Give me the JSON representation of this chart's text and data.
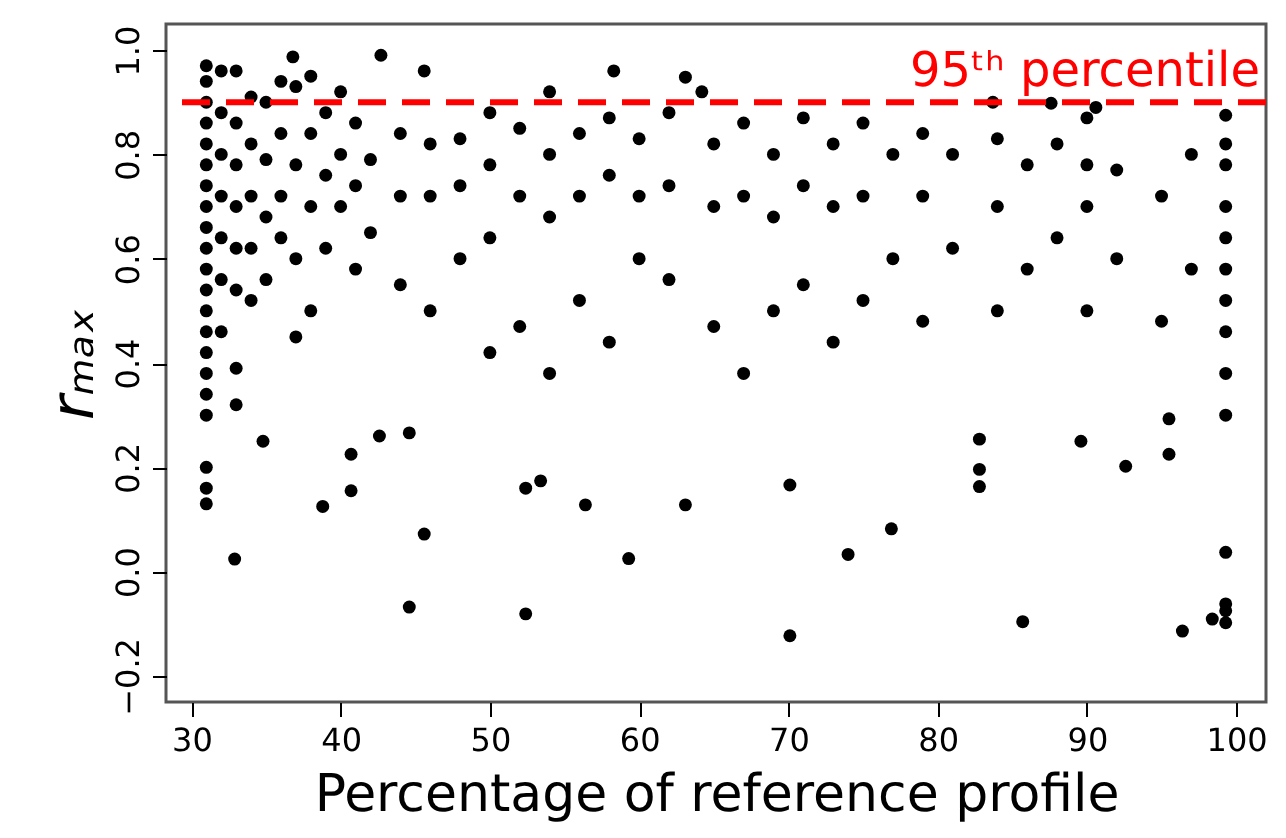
{
  "chart_data": {
    "type": "scatter",
    "xlabel": "Percentage of reference profile",
    "ylabel": "rₘₐₓ",
    "xlim": [
      28.3,
      102
    ],
    "ylim": [
      -0.25,
      1.05
    ],
    "xticks": [
      30,
      40,
      50,
      60,
      70,
      80,
      90,
      100
    ],
    "yticks": [
      {
        "value": -0.2,
        "label": "−0.2"
      },
      {
        "value": 0,
        "label": "0.0"
      },
      {
        "value": 0.2,
        "label": "0.2"
      },
      {
        "value": 0.4,
        "label": "0.4"
      },
      {
        "value": 0.6,
        "label": "0.6"
      },
      {
        "value": 0.8,
        "label": "0.8"
      },
      {
        "value": 1,
        "label": "1.0"
      }
    ],
    "grid": false,
    "marker": "circle",
    "ref_lines": [
      {
        "axis": "y",
        "value": 0.9,
        "label": "95ᵗʰ percentile",
        "color": "#ff0000",
        "line_style": "dashed"
      }
    ],
    "series": [
      {
        "color": "#000000",
        "x": [
          31,
          31,
          31,
          31,
          31,
          31,
          31,
          31,
          31,
          31,
          31,
          31,
          31,
          31,
          31,
          31,
          31,
          31,
          31,
          31,
          31,
          32,
          32,
          32,
          32,
          32,
          32,
          32,
          33,
          33,
          33,
          33,
          33,
          33,
          33,
          33,
          32.9,
          34,
          34,
          34,
          34,
          34,
          34.8,
          35,
          35,
          35,
          35,
          36,
          36,
          36,
          36,
          37,
          36.8,
          37,
          37,
          37,
          38,
          38,
          38,
          38,
          38.8,
          39,
          39,
          39,
          40,
          40,
          40,
          40.7,
          40.7,
          41,
          41,
          41,
          42,
          42.6,
          42.7,
          42,
          44,
          44,
          44.6,
          44.6,
          44,
          45.6,
          45.6,
          46,
          46,
          46,
          48,
          48,
          48,
          50,
          50,
          50,
          50,
          52,
          52,
          52.4,
          52.4,
          52,
          53.4,
          54,
          54,
          54,
          54,
          56,
          56,
          56.4,
          56,
          58,
          58.3,
          58,
          58,
          59.3,
          60,
          60,
          60,
          62,
          62,
          62,
          63.1,
          63.1,
          64.2,
          65,
          65,
          65,
          67,
          67,
          67,
          69,
          69,
          69,
          70.1,
          70.1,
          71,
          71,
          71,
          73,
          73,
          73,
          74,
          75,
          75,
          75,
          76.9,
          77,
          77,
          79,
          79,
          79,
          81,
          81,
          82.8,
          82.8,
          82.8,
          83.7,
          84,
          84,
          84,
          85.7,
          86,
          86,
          87.6,
          88,
          88,
          89.6,
          90,
          90,
          90,
          90.6,
          90,
          92,
          92,
          92.6,
          95,
          95,
          95.5,
          95.5,
          96.4,
          97,
          97,
          98.4,
          99.3,
          99.3,
          99.3,
          99.3,
          99.3,
          99.3,
          99.3,
          99.3,
          99.3,
          99.3,
          99.3,
          99.3,
          99.3,
          99.3
        ],
        "values": [
          0.97,
          0.94,
          0.9,
          0.86,
          0.82,
          0.78,
          0.74,
          0.7,
          0.66,
          0.62,
          0.58,
          0.54,
          0.5,
          0.46,
          0.42,
          0.38,
          0.34,
          0.3,
          0.2,
          0.16,
          0.13,
          0.96,
          0.88,
          0.8,
          0.72,
          0.64,
          0.56,
          0.46,
          0.96,
          0.86,
          0.78,
          0.7,
          0.62,
          0.54,
          0.39,
          0.32,
          0.024,
          0.91,
          0.82,
          0.72,
          0.62,
          0.52,
          0.25,
          0.9,
          0.79,
          0.68,
          0.56,
          0.94,
          0.84,
          0.72,
          0.64,
          0.93,
          0.987,
          0.78,
          0.6,
          0.45,
          0.95,
          0.84,
          0.7,
          0.5,
          0.125,
          0.88,
          0.76,
          0.62,
          0.92,
          0.8,
          0.7,
          0.155,
          0.225,
          0.86,
          0.74,
          0.58,
          0.79,
          0.26,
          0.99,
          0.65,
          0.84,
          0.72,
          0.266,
          -0.068,
          0.55,
          0.96,
          0.072,
          0.82,
          0.72,
          0.5,
          0.83,
          0.74,
          0.6,
          0.88,
          0.78,
          0.64,
          0.42,
          0.85,
          0.72,
          0.16,
          -0.081,
          0.47,
          0.174,
          0.92,
          0.8,
          0.68,
          0.38,
          0.84,
          0.72,
          0.128,
          0.52,
          0.87,
          0.96,
          0.76,
          0.44,
          0.025,
          0.83,
          0.72,
          0.6,
          0.88,
          0.74,
          0.56,
          0.948,
          0.128,
          0.92,
          0.82,
          0.7,
          0.47,
          0.86,
          0.72,
          0.38,
          0.8,
          0.68,
          0.5,
          0.166,
          -0.123,
          0.87,
          0.74,
          0.55,
          0.82,
          0.7,
          0.44,
          0.033,
          0.86,
          0.72,
          0.52,
          0.082,
          0.8,
          0.6,
          0.84,
          0.72,
          0.48,
          0.8,
          0.62,
          0.254,
          0.196,
          0.163,
          0.9,
          0.83,
          0.7,
          0.5,
          -0.096,
          0.78,
          0.58,
          0.898,
          0.82,
          0.64,
          0.25,
          0.87,
          0.78,
          0.7,
          0.89,
          0.5,
          0.77,
          0.6,
          0.202,
          0.72,
          0.48,
          0.293,
          0.225,
          -0.114,
          0.8,
          0.58,
          -0.091,
          0.875,
          0.78,
          0.7,
          0.64,
          0.58,
          0.52,
          0.46,
          0.38,
          0.3,
          0.037,
          -0.062,
          -0.075,
          -0.098,
          0.82
        ]
      }
    ]
  }
}
